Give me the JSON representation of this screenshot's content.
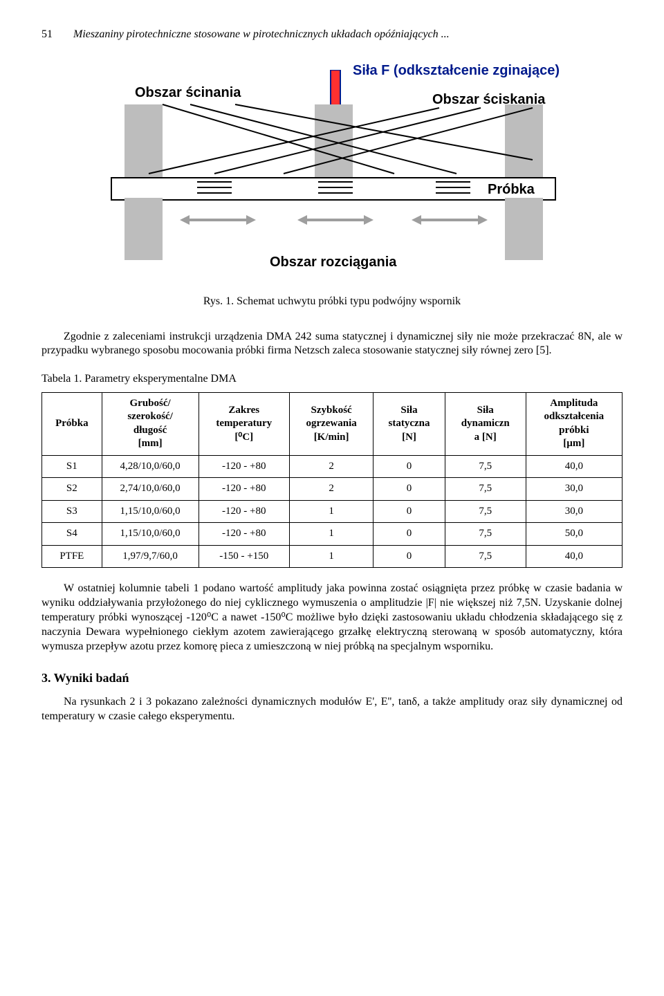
{
  "page_number": "51",
  "running_header": "Mieszaniny pirotechniczne stosowane w pirotechnicznych układach opóźniających ...",
  "figure": {
    "caption": "Rys. 1. Schemat uchwytu próbki typu podwójny wspornik",
    "labels": {
      "shear": "Obszar ścinania",
      "force": "Siła F (odkształcenie zginające)",
      "compress": "Obszar ściskania",
      "sample": "Próbka",
      "stretch": "Obszar rozciągania"
    },
    "colors": {
      "arrow_fill": "#ff3030",
      "arrow_stroke": "#001a8c",
      "support": "#bdbdbd",
      "h_arrow": "#9e9e9e",
      "beam_bg": "#ffffff",
      "beam_border": "#000000"
    }
  },
  "para1": "Zgodnie z zaleceniami instrukcji urządzenia DMA 242 suma statycznej i dynamicznej siły nie może przekraczać 8N, ale w przypadku wybranego sposobu mocowania próbki firma Netzsch zaleca stosowanie statycznej siły równej zero [5].",
  "table": {
    "caption": "Tabela 1. Parametry eksperymentalne DMA",
    "columns": [
      "Próbka",
      "Grubość/\nszerokość/\ndługość\n[mm]",
      "Zakres\ntemperatury\n[⁰C]",
      "Szybkość\nogrzewania\n[K/min]",
      "Siła\nstatyczna\n[N]",
      "Siła\ndynamiczn\na [N]",
      "Amplituda\nodkształcenia\npróbki\n[µm]"
    ],
    "rows": [
      [
        "S1",
        "4,28/10,0/60,0",
        "-120 - +80",
        "2",
        "0",
        "7,5",
        "40,0"
      ],
      [
        "S2",
        "2,74/10,0/60,0",
        "-120 - +80",
        "2",
        "0",
        "7,5",
        "30,0"
      ],
      [
        "S3",
        "1,15/10,0/60,0",
        "-120 - +80",
        "1",
        "0",
        "7,5",
        "30,0"
      ],
      [
        "S4",
        "1,15/10,0/60,0",
        "-120 - +80",
        "1",
        "0",
        "7,5",
        "50,0"
      ],
      [
        "PTFE",
        "1,97/9,7/60,0",
        "-150 - +150",
        "1",
        "0",
        "7,5",
        "40,0"
      ]
    ]
  },
  "para2": "W ostatniej kolumnie tabeli 1 podano wartość amplitudy jaka powinna zostać osiągnięta przez próbkę w czasie badania w wyniku oddziaływania przyłożonego do niej cyklicznego wymuszenia o amplitudzie |F| nie większej niż 7,5N. Uzyskanie dolnej temperatury próbki wynoszącej -120⁰C a nawet -150⁰C możliwe było dzięki zastosowaniu układu chłodzenia składającego się z naczynia Dewara wypełnionego ciekłym azotem zawierającego grzałkę elektryczną sterowaną w sposób automatyczny, która wymusza przepływ azotu przez komorę pieca z umieszczoną w niej próbką na specjalnym wsporniku.",
  "section_heading": "3. Wyniki badań",
  "para3": "Na rysunkach 2 i 3 pokazano zależności dynamicznych modułów E', E'', tanδ, a także amplitudy oraz siły dynamicznej od temperatury w czasie całego eksperymentu."
}
